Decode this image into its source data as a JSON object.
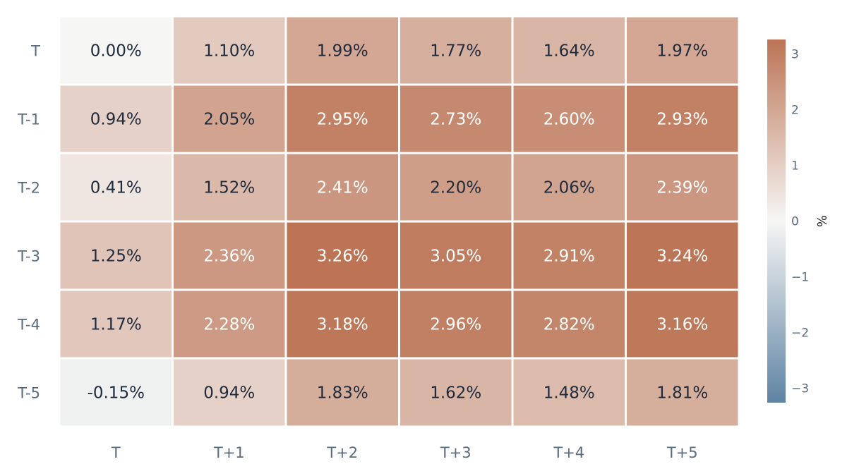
{
  "chart_data": {
    "type": "heatmap",
    "x_labels": [
      "T",
      "T+1",
      "T+2",
      "T+3",
      "T+4",
      "T+5"
    ],
    "y_labels": [
      "T",
      "T-1",
      "T-2",
      "T-3",
      "T-4",
      "T-5"
    ],
    "values": [
      [
        0.0,
        1.1,
        1.99,
        1.77,
        1.64,
        1.97
      ],
      [
        0.94,
        2.05,
        2.95,
        2.73,
        2.6,
        2.93
      ],
      [
        0.41,
        1.52,
        2.41,
        2.2,
        2.06,
        2.39
      ],
      [
        1.25,
        2.36,
        3.26,
        3.05,
        2.91,
        3.24
      ],
      [
        1.17,
        2.28,
        3.18,
        2.96,
        2.82,
        3.16
      ],
      [
        -0.15,
        0.94,
        1.83,
        1.62,
        1.48,
        1.81
      ]
    ],
    "cell_labels": [
      [
        "0.00%",
        "1.10%",
        "1.99%",
        "1.77%",
        "1.64%",
        "1.97%"
      ],
      [
        "0.94%",
        "2.05%",
        "2.95%",
        "2.73%",
        "2.60%",
        "2.93%"
      ],
      [
        "0.41%",
        "1.52%",
        "2.41%",
        "2.20%",
        "2.06%",
        "2.39%"
      ],
      [
        "1.25%",
        "2.36%",
        "3.26%",
        "3.05%",
        "2.91%",
        "3.24%"
      ],
      [
        "1.17%",
        "2.28%",
        "3.18%",
        "2.96%",
        "2.82%",
        "3.16%"
      ],
      [
        "-0.15%",
        "0.94%",
        "1.83%",
        "1.62%",
        "1.48%",
        "1.81%"
      ]
    ],
    "colorbar": {
      "title": "%",
      "range": [
        -3.26,
        3.26
      ],
      "ticks": [
        3,
        2,
        1,
        0,
        -1,
        -2,
        -3
      ],
      "tick_labels": [
        "3",
        "2",
        "1",
        "0",
        "−1",
        "−2",
        "−3"
      ],
      "colors": {
        "low": "#5f83a3",
        "mid": "#f6f6f5",
        "high": "#bc7455"
      }
    },
    "text_colors": {
      "dark": "#1f2b3d",
      "light": "#ffffff"
    },
    "grid": false,
    "legend": "right"
  }
}
